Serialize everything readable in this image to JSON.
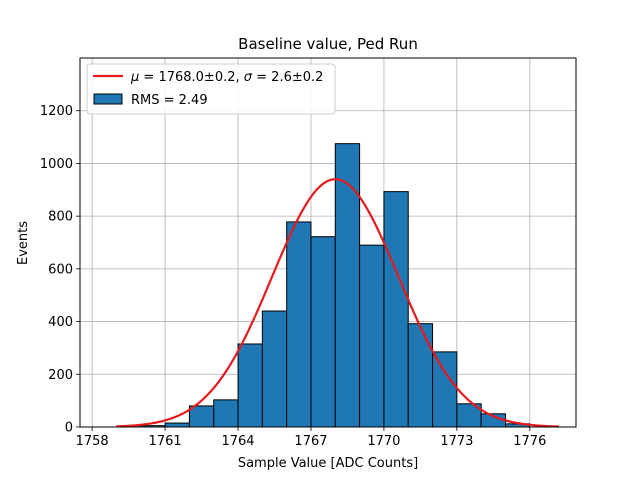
{
  "chart_data": {
    "type": "bar",
    "title": "Baseline value, Ped Run",
    "xlabel": "Sample Value [ADC Counts]",
    "ylabel": "Events",
    "xlim": [
      1757.5,
      1777.9
    ],
    "ylim": [
      0,
      1400
    ],
    "grid": true,
    "legend_placement": "top-left",
    "x_ticks": [
      1758,
      1761,
      1764,
      1767,
      1770,
      1773,
      1776
    ],
    "y_ticks": [
      0,
      200,
      400,
      600,
      800,
      1000,
      1200
    ],
    "histogram": {
      "name": "RMS = 2.49",
      "color": "#1f77b4",
      "edge_color": "#000000",
      "bin_edges": [
        1759.0,
        1760.0,
        1761.0,
        1762.0,
        1763.0,
        1764.0,
        1765.0,
        1766.0,
        1767.0,
        1768.0,
        1769.0,
        1770.0,
        1771.0,
        1772.0,
        1773.0,
        1774.0,
        1775.0,
        1776.0
      ],
      "counts": [
        1,
        5,
        15,
        80,
        103,
        315,
        440,
        778,
        722,
        1075,
        690,
        893,
        392,
        285,
        88,
        50,
        12
      ]
    },
    "fit": {
      "type": "gaussian",
      "name": "$\\mu = 1768.0 \\pm 0.2$, $\\sigma = 2.6 \\pm 0.2$",
      "color": "#e41a1c",
      "mu": 1768.0,
      "sigma": 2.6,
      "amplitude": 940,
      "x_range": [
        1759.0,
        1777.2
      ]
    }
  }
}
